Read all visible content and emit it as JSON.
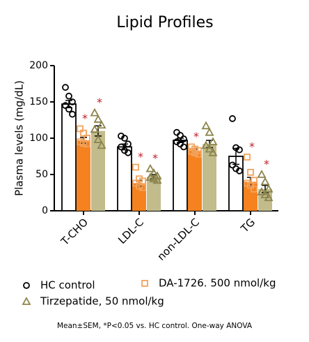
{
  "chart_data": {
    "type": "bar",
    "title": "Lipid Profiles",
    "y_label": "Plasma levels (mg/dL)",
    "footnote": "Mean±SEM, *P<0.05 vs. HC control. One-way ANOVA",
    "categories": [
      "T-CHO",
      "LDL-C",
      "non-LDL-C",
      "TG"
    ],
    "ylim": [
      0,
      200
    ],
    "yticks": [
      0,
      50,
      100,
      150,
      200
    ],
    "series": [
      {
        "name": "HC control",
        "color": "#ffffff",
        "marker": "circle",
        "marker_color": "#000000",
        "values": [
          147,
          88,
          97,
          75
        ],
        "errors": [
          5,
          4,
          3,
          11
        ],
        "points": [
          [
            170,
            158,
            150,
            145,
            140,
            133
          ],
          [
            103,
            100,
            92,
            88,
            83,
            80
          ],
          [
            108,
            104,
            99,
            95,
            92,
            88
          ],
          [
            127,
            87,
            84,
            63,
            58,
            55
          ]
        ],
        "annotations": [
          null,
          null,
          null,
          null
        ]
      },
      {
        "name": "DA-1726. 500 nmol/kg",
        "color": "#f5821f",
        "marker": "square",
        "marker_color": "#f2a35c",
        "values": [
          97,
          38,
          83,
          40
        ],
        "errors": [
          4,
          4,
          2,
          6
        ],
        "points": [
          [
            113,
            107,
            100,
            95,
            93,
            92
          ],
          [
            60,
            44,
            41,
            38,
            34,
            32
          ],
          [
            88,
            85,
            83,
            82,
            80,
            78
          ],
          [
            74,
            53,
            42,
            38,
            35,
            30
          ]
        ],
        "annotations": [
          "*",
          "*",
          "*",
          "*"
        ]
      },
      {
        "name": "Tirzepatide, 50 nmol/kg",
        "color": "#c2bb8c",
        "marker": "triangle",
        "marker_color": "#8c844c",
        "values": [
          110,
          47,
          92,
          30
        ],
        "errors": [
          7,
          3,
          5,
          5
        ],
        "points": [
          [
            135,
            126,
            118,
            112,
            98,
            90
          ],
          [
            58,
            52,
            48,
            46,
            44,
            42
          ],
          [
            117,
            108,
            95,
            90,
            85,
            80
          ],
          [
            50,
            40,
            30,
            26,
            22,
            18
          ]
        ],
        "annotations": [
          "*",
          "*",
          null,
          "*"
        ]
      }
    ]
  }
}
